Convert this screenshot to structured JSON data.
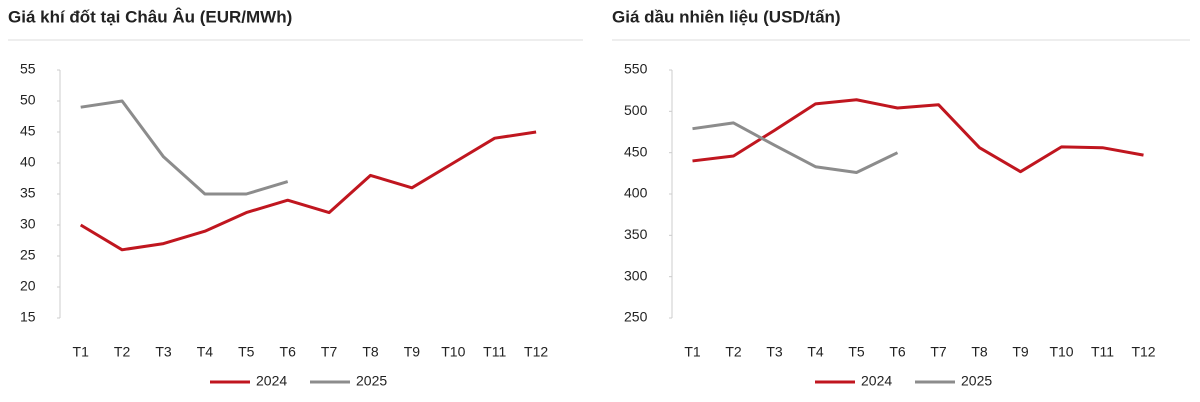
{
  "chart_data": [
    {
      "type": "line",
      "title": "Giá khí đốt tại Châu Âu (EUR/MWh)",
      "categories": [
        "T1",
        "T2",
        "T3",
        "T4",
        "T5",
        "T6",
        "T7",
        "T8",
        "T9",
        "T10",
        "T11",
        "T12"
      ],
      "series": [
        {
          "name": "2024",
          "color": "#c0161f",
          "values": [
            30,
            26,
            27,
            29,
            32,
            34,
            32,
            38,
            36,
            40,
            44,
            45
          ]
        },
        {
          "name": "2025",
          "color": "#8c8c8c",
          "values": [
            49,
            50,
            41,
            35,
            35,
            37,
            null,
            null,
            null,
            null,
            null,
            null
          ]
        }
      ],
      "ylim": [
        15,
        55
      ],
      "yticks": [
        15,
        20,
        25,
        30,
        35,
        40,
        45,
        50,
        55
      ]
    },
    {
      "type": "line",
      "title": "Giá dầu nhiên liệu (USD/tấn)",
      "categories": [
        "T1",
        "T2",
        "T3",
        "T4",
        "T5",
        "T6",
        "T7",
        "T8",
        "T9",
        "T10",
        "T11",
        "T12"
      ],
      "series": [
        {
          "name": "2024",
          "color": "#c0161f",
          "values": [
            440,
            446,
            477,
            509,
            514,
            504,
            508,
            456,
            427,
            457,
            456,
            447
          ]
        },
        {
          "name": "2025",
          "color": "#8c8c8c",
          "values": [
            479,
            486,
            459,
            433,
            426,
            450,
            null,
            null,
            null,
            null,
            null,
            null
          ]
        }
      ],
      "ylim": [
        250,
        550
      ],
      "yticks": [
        250,
        300,
        350,
        400,
        450,
        500,
        550
      ]
    }
  ]
}
